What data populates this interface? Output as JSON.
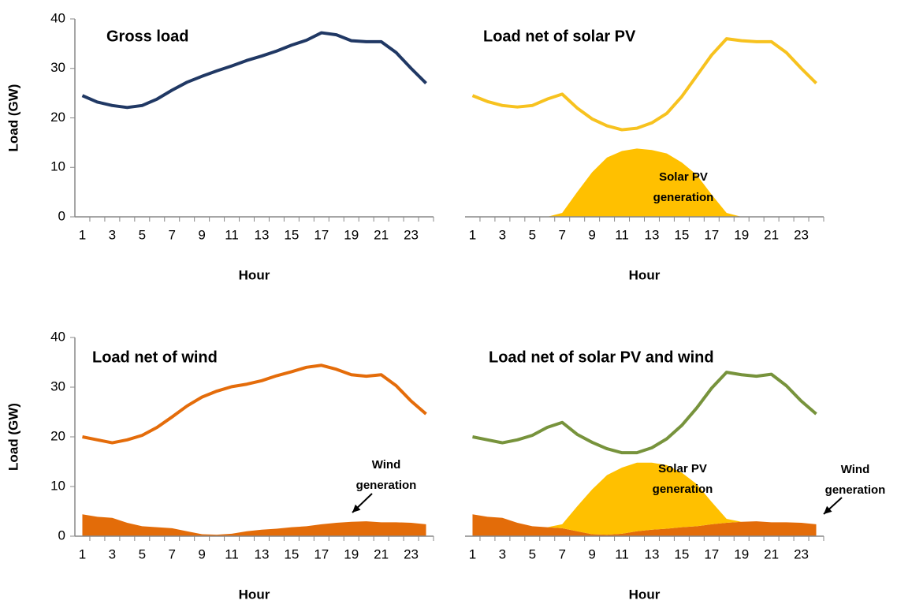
{
  "chart_data": [
    {
      "type": "line",
      "title": "Gross load",
      "xlabel": "Hour",
      "ylabel": "Load (GW)",
      "categories": [
        1,
        null,
        3,
        null,
        5,
        null,
        7,
        null,
        9,
        null,
        11,
        null,
        13,
        null,
        15,
        null,
        17,
        null,
        19,
        null,
        21,
        null,
        23,
        null
      ],
      "ylim": [
        0,
        40
      ],
      "yticks": [
        0,
        10,
        20,
        30,
        40
      ],
      "series": [
        {
          "color": "#203864",
          "fill": false,
          "values": [
            24.5,
            23.2,
            22.5,
            22.1,
            22.5,
            23.8,
            25.6,
            27.2,
            28.4,
            29.5,
            30.5,
            31.6,
            32.5,
            33.5,
            34.7,
            35.7,
            37.2,
            36.8,
            35.6,
            35.4,
            35.4,
            33.2,
            30.0,
            27.0
          ]
        }
      ]
    },
    {
      "type": "line",
      "title": "Load net of solar PV",
      "xlabel": "Hour",
      "categories": [
        1,
        null,
        3,
        null,
        5,
        null,
        7,
        null,
        9,
        null,
        11,
        null,
        13,
        null,
        15,
        null,
        17,
        null,
        19,
        null,
        21,
        null,
        23,
        null
      ],
      "ylim": [
        0,
        40
      ],
      "series": [
        {
          "color": "#ffc000",
          "fill": true,
          "values": [
            0,
            0,
            0,
            0,
            0,
            0,
            0.8,
            5.0,
            9.0,
            12.0,
            13.3,
            13.8,
            13.5,
            12.8,
            11.0,
            8.5,
            4.5,
            0.8,
            0,
            0,
            0,
            0,
            0,
            0
          ]
        },
        {
          "color": "#f7c21f",
          "fill": false,
          "values": [
            24.5,
            23.3,
            22.5,
            22.2,
            22.5,
            23.8,
            24.8,
            22.0,
            19.8,
            18.4,
            17.6,
            17.9,
            19.0,
            20.9,
            24.3,
            28.5,
            32.7,
            36.0,
            35.6,
            35.4,
            35.4,
            33.2,
            30.0,
            27.0
          ]
        }
      ],
      "annotations": [
        {
          "lines": [
            "Solar PV",
            "generation"
          ]
        }
      ]
    },
    {
      "type": "line",
      "title": "Load net of wind",
      "xlabel": "Hour",
      "ylabel": "Load (GW)",
      "categories": [
        1,
        null,
        3,
        null,
        5,
        null,
        7,
        null,
        9,
        null,
        11,
        null,
        13,
        null,
        15,
        null,
        17,
        null,
        19,
        null,
        21,
        null,
        23,
        null
      ],
      "ylim": [
        0,
        40
      ],
      "yticks": [
        0,
        10,
        20,
        30,
        40
      ],
      "series": [
        {
          "color": "#e36c09",
          "fill": true,
          "values": [
            4.4,
            3.9,
            3.7,
            2.7,
            2.0,
            1.8,
            1.6,
            1.0,
            0.4,
            0.3,
            0.5,
            1.0,
            1.3,
            1.5,
            1.8,
            2.0,
            2.4,
            2.7,
            2.9,
            3.0,
            2.8,
            2.8,
            2.7,
            2.4
          ]
        },
        {
          "color": "#e46c0a",
          "fill": false,
          "values": [
            20.0,
            19.4,
            18.8,
            19.4,
            20.3,
            21.9,
            24.0,
            26.2,
            28.0,
            29.2,
            30.1,
            30.6,
            31.3,
            32.3,
            33.1,
            34.0,
            34.4,
            33.6,
            32.5,
            32.2,
            32.5,
            30.3,
            27.2,
            24.6
          ]
        }
      ],
      "annotations": [
        {
          "lines": [
            "Wind",
            "generation"
          ]
        }
      ]
    },
    {
      "type": "line",
      "title": "Load net of solar PV and wind",
      "xlabel": "Hour",
      "categories": [
        1,
        null,
        3,
        null,
        5,
        null,
        7,
        null,
        9,
        null,
        11,
        null,
        13,
        null,
        15,
        null,
        17,
        null,
        19,
        null,
        21,
        null,
        23,
        null
      ],
      "ylim": [
        0,
        40
      ],
      "series": [
        {
          "color": "#e36c09",
          "fill": true,
          "values": [
            4.4,
            3.9,
            3.7,
            2.7,
            2.0,
            1.8,
            1.6,
            1.0,
            0.4,
            0.3,
            0.5,
            1.0,
            1.3,
            1.5,
            1.8,
            2.0,
            2.4,
            2.7,
            2.9,
            3.0,
            2.8,
            2.8,
            2.7,
            2.4
          ]
        },
        {
          "color": "#ffc000",
          "fill": true,
          "stacked": true,
          "values": [
            0,
            0,
            0,
            0,
            0,
            0,
            0.8,
            5.0,
            9.0,
            12.0,
            13.3,
            13.8,
            13.5,
            12.8,
            11.0,
            8.5,
            4.5,
            0.8,
            0,
            0,
            0,
            0,
            0,
            0
          ]
        },
        {
          "color": "#77933c",
          "fill": false,
          "values": [
            20.0,
            19.4,
            18.8,
            19.4,
            20.3,
            21.9,
            22.9,
            20.5,
            18.9,
            17.6,
            16.8,
            16.8,
            17.8,
            19.6,
            22.3,
            25.8,
            29.8,
            33.0,
            32.5,
            32.2,
            32.6,
            30.3,
            27.2,
            24.6
          ]
        }
      ],
      "annotations": [
        {
          "lines": [
            "Solar PV",
            "generation"
          ]
        },
        {
          "lines": [
            "Wind",
            "generation"
          ]
        }
      ]
    }
  ]
}
